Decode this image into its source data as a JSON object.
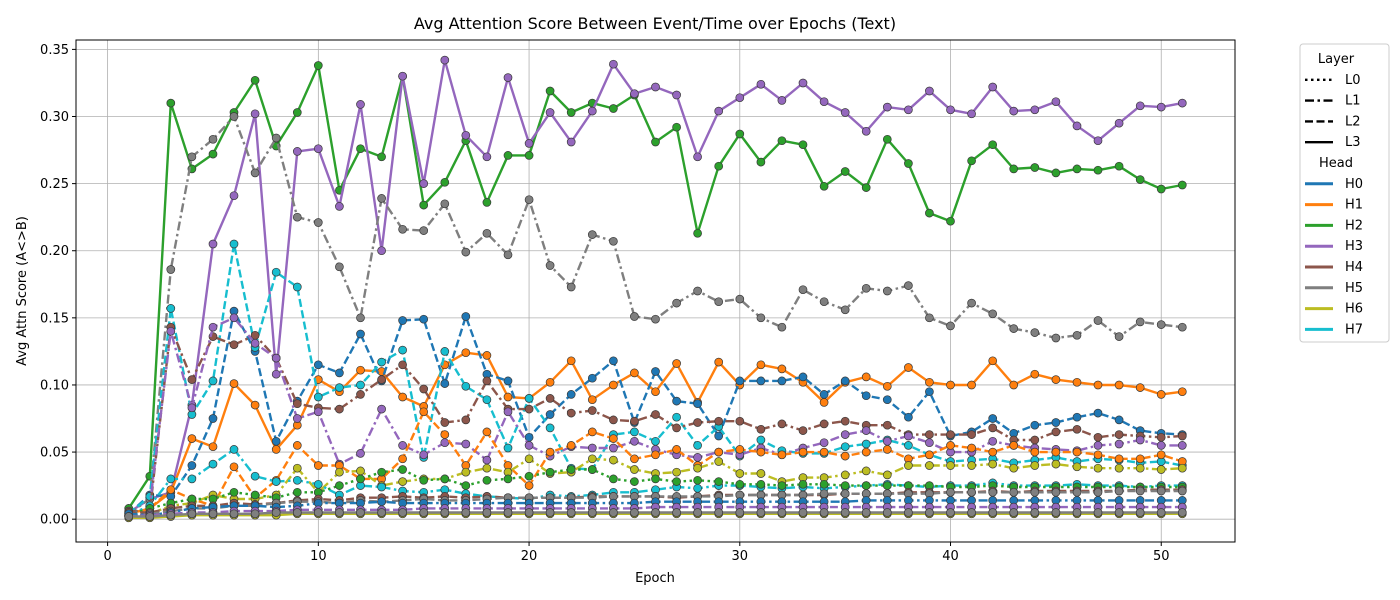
{
  "chart_data": {
    "type": "line",
    "title": "Avg Attention Score Between Event/Time over Epochs (Text)",
    "xlabel": "Epoch",
    "ylabel": "Avg Attn Score (A<>B)",
    "xlim": [
      -1.5,
      53.5
    ],
    "ylim": [
      -0.017,
      0.357
    ],
    "xticks": [
      0,
      10,
      20,
      30,
      40,
      50
    ],
    "yticks": [
      0.0,
      0.05,
      0.1,
      0.15,
      0.2,
      0.25,
      0.3,
      0.35
    ],
    "grid": true,
    "legend": {
      "placement": "outside-right",
      "layer_title": "Layer",
      "head_title": "Head",
      "layers": [
        {
          "label": "L0",
          "style": "dotted"
        },
        {
          "label": "L1",
          "style": "dashdot"
        },
        {
          "label": "L2",
          "style": "dashed"
        },
        {
          "label": "L3",
          "style": "solid"
        }
      ],
      "heads": [
        {
          "label": "H0",
          "color": "#1f77b4"
        },
        {
          "label": "H1",
          "color": "#ff7f0e"
        },
        {
          "label": "H2",
          "color": "#2ca02c"
        },
        {
          "label": "H3",
          "color": "#9467bd"
        },
        {
          "label": "H4",
          "color": "#8c564b"
        },
        {
          "label": "H5",
          "color": "#7f7f7f"
        },
        {
          "label": "H6",
          "color": "#bcbd22"
        },
        {
          "label": "H7",
          "color": "#17becf"
        }
      ]
    },
    "x": [
      1,
      2,
      3,
      4,
      5,
      6,
      7,
      8,
      9,
      10,
      11,
      12,
      13,
      14,
      15,
      16,
      17,
      18,
      19,
      20,
      21,
      22,
      23,
      24,
      25,
      26,
      27,
      28,
      29,
      30,
      31,
      32,
      33,
      34,
      35,
      36,
      37,
      38,
      39,
      40,
      41,
      42,
      43,
      44,
      45,
      46,
      47,
      48,
      49,
      50,
      51
    ],
    "series": [
      {
        "head": "H2",
        "layer": "L3",
        "values": [
          0.008,
          0.032,
          0.31,
          0.261,
          0.272,
          0.303,
          0.327,
          0.278,
          0.303,
          0.338,
          0.245,
          0.276,
          0.27,
          0.33,
          0.234,
          0.251,
          0.282,
          0.236,
          0.271,
          0.271,
          0.319,
          0.303,
          0.31,
          0.306,
          0.316,
          0.281,
          0.292,
          0.213,
          0.263,
          0.287,
          0.266,
          0.282,
          0.279,
          0.248,
          0.259,
          0.247,
          0.283,
          0.265,
          0.228,
          0.222,
          0.267,
          0.279,
          0.261,
          0.262,
          0.258,
          0.261,
          0.26,
          0.263,
          0.253,
          0.246,
          0.249
        ]
      },
      {
        "head": "H3",
        "layer": "L3",
        "values": [
          0.005,
          0.015,
          0.02,
          0.085,
          0.205,
          0.241,
          0.302,
          0.108,
          0.274,
          0.276,
          0.233,
          0.309,
          0.2,
          0.33,
          0.25,
          0.342,
          0.286,
          0.27,
          0.329,
          0.28,
          0.303,
          0.281,
          0.304,
          0.339,
          0.317,
          0.322,
          0.316,
          0.27,
          0.304,
          0.314,
          0.324,
          0.312,
          0.325,
          0.311,
          0.303,
          0.289,
          0.307,
          0.305,
          0.319,
          0.305,
          0.302,
          0.322,
          0.304,
          0.305,
          0.311,
          0.293,
          0.282,
          0.295,
          0.308,
          0.307,
          0.31
        ]
      },
      {
        "head": "H5",
        "layer": "L1",
        "values": [
          0.004,
          0.015,
          0.186,
          0.27,
          0.283,
          0.3,
          0.258,
          0.284,
          0.225,
          0.221,
          0.188,
          0.15,
          0.239,
          0.216,
          0.215,
          0.235,
          0.199,
          0.213,
          0.197,
          0.238,
          0.189,
          0.173,
          0.212,
          0.207,
          0.151,
          0.149,
          0.161,
          0.17,
          0.162,
          0.164,
          0.15,
          0.143,
          0.171,
          0.162,
          0.156,
          0.172,
          0.17,
          0.174,
          0.15,
          0.144,
          0.161,
          0.153,
          0.142,
          0.139,
          0.135,
          0.137,
          0.148,
          0.136,
          0.147,
          0.145,
          0.143
        ]
      },
      {
        "head": "H1",
        "layer": "L3",
        "values": [
          0.004,
          0.008,
          0.02,
          0.06,
          0.054,
          0.101,
          0.085,
          0.052,
          0.07,
          0.104,
          0.095,
          0.111,
          0.11,
          0.091,
          0.084,
          0.115,
          0.124,
          0.122,
          0.091,
          0.09,
          0.102,
          0.118,
          0.089,
          0.1,
          0.109,
          0.095,
          0.116,
          0.087,
          0.117,
          0.1,
          0.115,
          0.112,
          0.102,
          0.087,
          0.102,
          0.106,
          0.099,
          0.113,
          0.102,
          0.1,
          0.1,
          0.118,
          0.1,
          0.108,
          0.104,
          0.102,
          0.1,
          0.1,
          0.098,
          0.093,
          0.095
        ]
      },
      {
        "head": "H0",
        "layer": "L2",
        "values": [
          0.004,
          0.018,
          0.017,
          0.04,
          0.075,
          0.155,
          0.125,
          0.058,
          0.088,
          0.115,
          0.109,
          0.138,
          0.103,
          0.148,
          0.149,
          0.101,
          0.151,
          0.108,
          0.103,
          0.061,
          0.078,
          0.093,
          0.105,
          0.118,
          0.072,
          0.11,
          0.088,
          0.086,
          0.062,
          0.103,
          0.103,
          0.103,
          0.106,
          0.093,
          0.103,
          0.092,
          0.089,
          0.076,
          0.095,
          0.062,
          0.065,
          0.075,
          0.064,
          0.07,
          0.072,
          0.076,
          0.079,
          0.074,
          0.066,
          0.064,
          0.063
        ]
      },
      {
        "head": "H7",
        "layer": "L2",
        "values": [
          0.004,
          0.017,
          0.157,
          0.078,
          0.103,
          0.205,
          0.128,
          0.184,
          0.173,
          0.091,
          0.098,
          0.1,
          0.117,
          0.126,
          0.046,
          0.125,
          0.099,
          0.089,
          0.053,
          0.09,
          0.068,
          0.038,
          0.037,
          0.063,
          0.065,
          0.058,
          0.076,
          0.055,
          0.069,
          0.047,
          0.059,
          0.051,
          0.049,
          0.049,
          0.054,
          0.056,
          0.059,
          0.055,
          0.048,
          0.043,
          0.044,
          0.045,
          0.042,
          0.044,
          0.046,
          0.043,
          0.045,
          0.044,
          0.042,
          0.043,
          0.04
        ]
      },
      {
        "head": "H4",
        "layer": "L1",
        "values": [
          0.006,
          0.006,
          0.143,
          0.104,
          0.136,
          0.13,
          0.137,
          0.12,
          0.086,
          0.083,
          0.082,
          0.093,
          0.104,
          0.115,
          0.097,
          0.072,
          0.074,
          0.103,
          0.082,
          0.082,
          0.09,
          0.079,
          0.081,
          0.074,
          0.073,
          0.078,
          0.068,
          0.072,
          0.073,
          0.073,
          0.067,
          0.071,
          0.066,
          0.071,
          0.073,
          0.07,
          0.07,
          0.063,
          0.063,
          0.063,
          0.063,
          0.068,
          0.059,
          0.059,
          0.065,
          0.067,
          0.061,
          0.063,
          0.062,
          0.061,
          0.062
        ]
      },
      {
        "head": "H3",
        "layer": "L1",
        "values": [
          0.003,
          0.01,
          0.14,
          0.083,
          0.143,
          0.15,
          0.131,
          0.12,
          0.075,
          0.08,
          0.041,
          0.049,
          0.082,
          0.055,
          0.048,
          0.057,
          0.056,
          0.044,
          0.08,
          0.055,
          0.047,
          0.054,
          0.053,
          0.053,
          0.058,
          0.052,
          0.048,
          0.046,
          0.05,
          0.048,
          0.053,
          0.048,
          0.053,
          0.057,
          0.063,
          0.066,
          0.058,
          0.062,
          0.057,
          0.05,
          0.05,
          0.058,
          0.055,
          0.053,
          0.052,
          0.051,
          0.055,
          0.056,
          0.059,
          0.055,
          0.055
        ]
      },
      {
        "head": "H1",
        "layer": "L2",
        "values": [
          0.003,
          0.008,
          0.022,
          0.015,
          0.01,
          0.039,
          0.016,
          0.029,
          0.055,
          0.04,
          0.04,
          0.03,
          0.03,
          0.045,
          0.08,
          0.063,
          0.04,
          0.065,
          0.04,
          0.025,
          0.05,
          0.055,
          0.065,
          0.06,
          0.045,
          0.048,
          0.052,
          0.04,
          0.05,
          0.052,
          0.05,
          0.048,
          0.05,
          0.05,
          0.047,
          0.05,
          0.052,
          0.045,
          0.048,
          0.055,
          0.053,
          0.05,
          0.055,
          0.05,
          0.05,
          0.05,
          0.048,
          0.045,
          0.045,
          0.048,
          0.043
        ]
      },
      {
        "head": "H6",
        "layer": "L1",
        "values": [
          0.002,
          0.004,
          0.01,
          0.012,
          0.018,
          0.015,
          0.015,
          0.018,
          0.038,
          0.02,
          0.035,
          0.036,
          0.025,
          0.028,
          0.03,
          0.03,
          0.035,
          0.038,
          0.035,
          0.045,
          0.034,
          0.035,
          0.045,
          0.044,
          0.037,
          0.034,
          0.035,
          0.038,
          0.043,
          0.034,
          0.034,
          0.028,
          0.031,
          0.031,
          0.033,
          0.036,
          0.033,
          0.04,
          0.04,
          0.04,
          0.04,
          0.041,
          0.038,
          0.04,
          0.041,
          0.039,
          0.038,
          0.038,
          0.038,
          0.037,
          0.038
        ]
      },
      {
        "head": "H7",
        "layer": "L1",
        "values": [
          0.003,
          0.01,
          0.03,
          0.03,
          0.041,
          0.052,
          0.032,
          0.028,
          0.029,
          0.026,
          0.018,
          0.025,
          0.024,
          0.021,
          0.02,
          0.022,
          0.019,
          0.017,
          0.016,
          0.015,
          0.018,
          0.017,
          0.018,
          0.02,
          0.02,
          0.022,
          0.024,
          0.023,
          0.025,
          0.025,
          0.024,
          0.023,
          0.024,
          0.023,
          0.024,
          0.025,
          0.026,
          0.025,
          0.024,
          0.025,
          0.025,
          0.027,
          0.025,
          0.025,
          0.025,
          0.026,
          0.025,
          0.025,
          0.024,
          0.025,
          0.025
        ]
      },
      {
        "head": "H2",
        "layer": "L0",
        "values": [
          0.003,
          0.008,
          0.012,
          0.015,
          0.015,
          0.02,
          0.018,
          0.016,
          0.02,
          0.02,
          0.025,
          0.03,
          0.035,
          0.037,
          0.029,
          0.03,
          0.025,
          0.029,
          0.03,
          0.032,
          0.035,
          0.037,
          0.037,
          0.03,
          0.028,
          0.03,
          0.028,
          0.029,
          0.028,
          0.026,
          0.026,
          0.025,
          0.026,
          0.026,
          0.025,
          0.025,
          0.025,
          0.025,
          0.025,
          0.024,
          0.024,
          0.025,
          0.024,
          0.024,
          0.024,
          0.024,
          0.024,
          0.024,
          0.024,
          0.024,
          0.024
        ]
      },
      {
        "head": "H4",
        "layer": "L2",
        "values": [
          0.005,
          0.005,
          0.008,
          0.01,
          0.01,
          0.012,
          0.011,
          0.012,
          0.014,
          0.015,
          0.014,
          0.016,
          0.016,
          0.017,
          0.016,
          0.017,
          0.016,
          0.017,
          0.016,
          0.016,
          0.016,
          0.016,
          0.017,
          0.017,
          0.017,
          0.017,
          0.016,
          0.017,
          0.018,
          0.018,
          0.018,
          0.018,
          0.018,
          0.018,
          0.019,
          0.019,
          0.019,
          0.02,
          0.02,
          0.02,
          0.02,
          0.021,
          0.02,
          0.021,
          0.021,
          0.021,
          0.021,
          0.021,
          0.022,
          0.022,
          0.022
        ]
      },
      {
        "head": "H5",
        "layer": "L2",
        "values": [
          0.002,
          0.004,
          0.006,
          0.008,
          0.008,
          0.01,
          0.01,
          0.012,
          0.013,
          0.013,
          0.012,
          0.014,
          0.013,
          0.014,
          0.015,
          0.014,
          0.014,
          0.015,
          0.016,
          0.016,
          0.016,
          0.016,
          0.016,
          0.017,
          0.017,
          0.017,
          0.017,
          0.017,
          0.017,
          0.018,
          0.018,
          0.018,
          0.018,
          0.019,
          0.019,
          0.019,
          0.019,
          0.019,
          0.019,
          0.02,
          0.02,
          0.02,
          0.02,
          0.02,
          0.02,
          0.02,
          0.02,
          0.021,
          0.021,
          0.021,
          0.021
        ]
      },
      {
        "head": "H0",
        "layer": "L1",
        "values": [
          0.004,
          0.003,
          0.005,
          0.008,
          0.009,
          0.01,
          0.01,
          0.009,
          0.01,
          0.012,
          0.012,
          0.012,
          0.013,
          0.012,
          0.012,
          0.012,
          0.012,
          0.012,
          0.012,
          0.012,
          0.012,
          0.012,
          0.012,
          0.012,
          0.012,
          0.013,
          0.013,
          0.013,
          0.013,
          0.013,
          0.013,
          0.013,
          0.013,
          0.013,
          0.013,
          0.014,
          0.014,
          0.014,
          0.014,
          0.014,
          0.014,
          0.014,
          0.014,
          0.014,
          0.014,
          0.014,
          0.014,
          0.014,
          0.014,
          0.014,
          0.014
        ]
      },
      {
        "head": "H3",
        "layer": "L2",
        "values": [
          0.002,
          0.003,
          0.004,
          0.005,
          0.005,
          0.006,
          0.006,
          0.006,
          0.007,
          0.007,
          0.007,
          0.007,
          0.007,
          0.007,
          0.008,
          0.008,
          0.008,
          0.008,
          0.008,
          0.008,
          0.008,
          0.008,
          0.008,
          0.008,
          0.008,
          0.009,
          0.009,
          0.009,
          0.009,
          0.009,
          0.009,
          0.009,
          0.009,
          0.009,
          0.009,
          0.009,
          0.009,
          0.009,
          0.009,
          0.009,
          0.009,
          0.009,
          0.009,
          0.009,
          0.009,
          0.009,
          0.009,
          0.009,
          0.009,
          0.009,
          0.009
        ]
      },
      {
        "head": "H6",
        "layer": "L3",
        "values": [
          0.001,
          0.001,
          0.002,
          0.003,
          0.003,
          0.003,
          0.003,
          0.003,
          0.004,
          0.004,
          0.004,
          0.004,
          0.004,
          0.004,
          0.004,
          0.004,
          0.004,
          0.004,
          0.004,
          0.004,
          0.004,
          0.004,
          0.004,
          0.004,
          0.004,
          0.004,
          0.004,
          0.004,
          0.004,
          0.004,
          0.004,
          0.004,
          0.004,
          0.004,
          0.004,
          0.004,
          0.004,
          0.004,
          0.004,
          0.004,
          0.004,
          0.004,
          0.004,
          0.004,
          0.004,
          0.004,
          0.004,
          0.004,
          0.004,
          0.004,
          0.004
        ]
      },
      {
        "head": "H5",
        "layer": "L3",
        "values": [
          0.002,
          0.002,
          0.003,
          0.004,
          0.004,
          0.004,
          0.004,
          0.005,
          0.005,
          0.005,
          0.005,
          0.005,
          0.005,
          0.005,
          0.005,
          0.005,
          0.005,
          0.005,
          0.005,
          0.005,
          0.005,
          0.005,
          0.005,
          0.005,
          0.005,
          0.005,
          0.005,
          0.005,
          0.005,
          0.005,
          0.005,
          0.005,
          0.005,
          0.005,
          0.005,
          0.005,
          0.005,
          0.005,
          0.005,
          0.005,
          0.005,
          0.005,
          0.005,
          0.005,
          0.005,
          0.005,
          0.005,
          0.005,
          0.005,
          0.005,
          0.005
        ]
      }
    ]
  }
}
